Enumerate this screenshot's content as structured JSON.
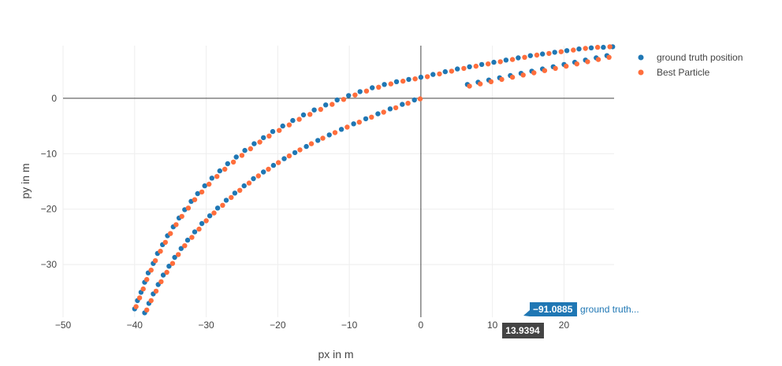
{
  "chart_data": {
    "type": "scatter",
    "xlabel": "px in m",
    "ylabel": "py in m",
    "xlim": [
      -50,
      27
    ],
    "ylim": [
      -39.5,
      9.5
    ],
    "xticks": [
      -50,
      -40,
      -30,
      -20,
      -10,
      0,
      10,
      20
    ],
    "yticks": [
      -30,
      -20,
      -10,
      0
    ],
    "xtick_labels": [
      "−50",
      "−40",
      "−30",
      "−20",
      "−10",
      "0",
      "10",
      "20"
    ],
    "ytick_labels": [
      "−30",
      "−20",
      "−10",
      "0"
    ],
    "grid": true,
    "zero_lines": true,
    "legend_position": "top-right",
    "series": [
      {
        "name": "ground truth position",
        "color": "#1f77b4",
        "x": [
          -40.0,
          -39.6,
          -39.1,
          -38.6,
          -38.1,
          -37.4,
          -36.8,
          -36.1,
          -35.4,
          -34.6,
          -33.8,
          -33.0,
          -32.1,
          -31.2,
          -30.2,
          -29.2,
          -28.1,
          -27.0,
          -25.8,
          -24.6,
          -23.3,
          -22.0,
          -20.7,
          -19.3,
          -17.9,
          -16.4,
          -14.9,
          -13.3,
          -11.7,
          -10.1,
          -8.5,
          -6.8,
          -5.1,
          -3.4,
          -1.7,
          0.0,
          1.7,
          3.4,
          5.1,
          6.8,
          8.5,
          10.2,
          11.9,
          13.6,
          15.3,
          17.0,
          18.7,
          20.4,
          22.1,
          23.8,
          25.5,
          26.8,
          -38.6,
          -38.0,
          -37.4,
          -36.7,
          -36.0,
          -35.2,
          -34.4,
          -33.5,
          -32.6,
          -31.6,
          -30.6,
          -29.5,
          -28.4,
          -27.2,
          -26.0,
          -24.7,
          -23.4,
          -22.0,
          -20.6,
          -19.1,
          -17.6,
          -16.0,
          -14.4,
          -12.8,
          -11.1,
          -9.4,
          -7.7,
          -6.0,
          -4.3,
          -2.6,
          -0.9,
          6.5,
          8.0,
          9.5,
          11.0,
          12.5,
          14.0,
          15.5,
          17.0,
          18.5,
          20.0,
          21.5,
          23.0,
          24.5,
          26.0
        ],
        "y": [
          -38.0,
          -36.5,
          -35.0,
          -33.2,
          -31.5,
          -29.8,
          -28.0,
          -26.4,
          -24.8,
          -23.2,
          -21.6,
          -20.1,
          -18.6,
          -17.2,
          -15.8,
          -14.4,
          -13.1,
          -11.8,
          -10.6,
          -9.4,
          -8.2,
          -7.1,
          -6.0,
          -5.0,
          -4.0,
          -3.0,
          -2.1,
          -1.2,
          -0.3,
          0.5,
          1.2,
          1.9,
          2.5,
          3.0,
          3.4,
          3.8,
          4.3,
          4.8,
          5.3,
          5.7,
          6.1,
          6.5,
          6.9,
          7.3,
          7.7,
          8.0,
          8.3,
          8.6,
          8.9,
          9.1,
          9.2,
          9.3,
          -38.7,
          -37.0,
          -35.3,
          -33.6,
          -31.9,
          -30.3,
          -28.7,
          -27.1,
          -25.6,
          -24.1,
          -22.6,
          -21.2,
          -19.8,
          -18.4,
          -17.1,
          -15.8,
          -14.5,
          -13.3,
          -12.1,
          -10.9,
          -9.8,
          -8.7,
          -7.6,
          -6.6,
          -5.6,
          -4.6,
          -3.7,
          -2.8,
          -1.9,
          -1.1,
          -0.3,
          2.5,
          2.9,
          3.3,
          3.7,
          4.1,
          4.5,
          4.9,
          5.3,
          5.7,
          6.1,
          6.5,
          6.9,
          7.3,
          7.7
        ]
      },
      {
        "name": "Best Particle",
        "color": "#ff6e3c",
        "x": [
          -39.8,
          -39.3,
          -38.8,
          -38.3,
          -37.7,
          -37.1,
          -36.4,
          -35.7,
          -35.0,
          -34.2,
          -33.4,
          -32.5,
          -31.6,
          -30.6,
          -29.6,
          -28.5,
          -27.4,
          -26.2,
          -25.0,
          -23.8,
          -22.5,
          -21.2,
          -19.8,
          -18.4,
          -17.0,
          -15.5,
          -14.0,
          -12.4,
          -10.8,
          -9.2,
          -7.6,
          -5.9,
          -4.2,
          -2.5,
          -0.8,
          0.9,
          2.6,
          4.3,
          6.0,
          7.7,
          9.4,
          11.1,
          12.8,
          14.5,
          16.2,
          17.9,
          19.6,
          21.3,
          23.0,
          24.7,
          26.4,
          -38.3,
          -37.7,
          -37.0,
          -36.3,
          -35.5,
          -34.7,
          -33.9,
          -33.0,
          -32.0,
          -31.0,
          -30.0,
          -28.9,
          -27.7,
          -26.5,
          -25.3,
          -24.0,
          -22.7,
          -21.3,
          -19.9,
          -18.4,
          -16.9,
          -15.3,
          -13.7,
          -12.0,
          -10.3,
          -8.6,
          -6.9,
          -5.2,
          -3.5,
          -1.8,
          -0.1,
          6.8,
          8.3,
          9.8,
          11.3,
          12.8,
          14.3,
          15.8,
          17.3,
          18.8,
          20.3,
          21.8,
          23.3,
          24.8,
          26.3
        ],
        "y": [
          -37.6,
          -36.0,
          -34.4,
          -32.7,
          -31.0,
          -29.3,
          -27.6,
          -26.0,
          -24.4,
          -22.8,
          -21.3,
          -19.8,
          -18.3,
          -16.9,
          -15.5,
          -14.1,
          -12.8,
          -11.5,
          -10.3,
          -9.1,
          -7.9,
          -6.8,
          -5.8,
          -4.8,
          -3.8,
          -2.9,
          -2.0,
          -1.1,
          -0.2,
          0.6,
          1.3,
          2.0,
          2.6,
          3.1,
          3.5,
          3.9,
          4.4,
          4.9,
          5.4,
          5.8,
          6.2,
          6.6,
          7.0,
          7.4,
          7.8,
          8.1,
          8.4,
          8.7,
          9.0,
          9.2,
          9.3,
          -38.2,
          -36.5,
          -34.8,
          -33.1,
          -31.4,
          -29.8,
          -28.2,
          -26.6,
          -25.1,
          -23.6,
          -22.1,
          -20.7,
          -19.3,
          -17.9,
          -16.6,
          -15.3,
          -14.0,
          -12.8,
          -11.6,
          -10.4,
          -9.3,
          -8.2,
          -7.2,
          -6.2,
          -5.2,
          -4.3,
          -3.4,
          -2.5,
          -1.7,
          -0.9,
          -0.1,
          2.2,
          2.6,
          3.0,
          3.4,
          3.8,
          4.2,
          4.6,
          5.0,
          5.4,
          5.8,
          6.2,
          6.6,
          7.0,
          7.4
        ]
      }
    ],
    "hover": {
      "x_value_label": "13.9394",
      "y_value_label": "−91.0885",
      "trace_label": "ground truth..."
    }
  }
}
